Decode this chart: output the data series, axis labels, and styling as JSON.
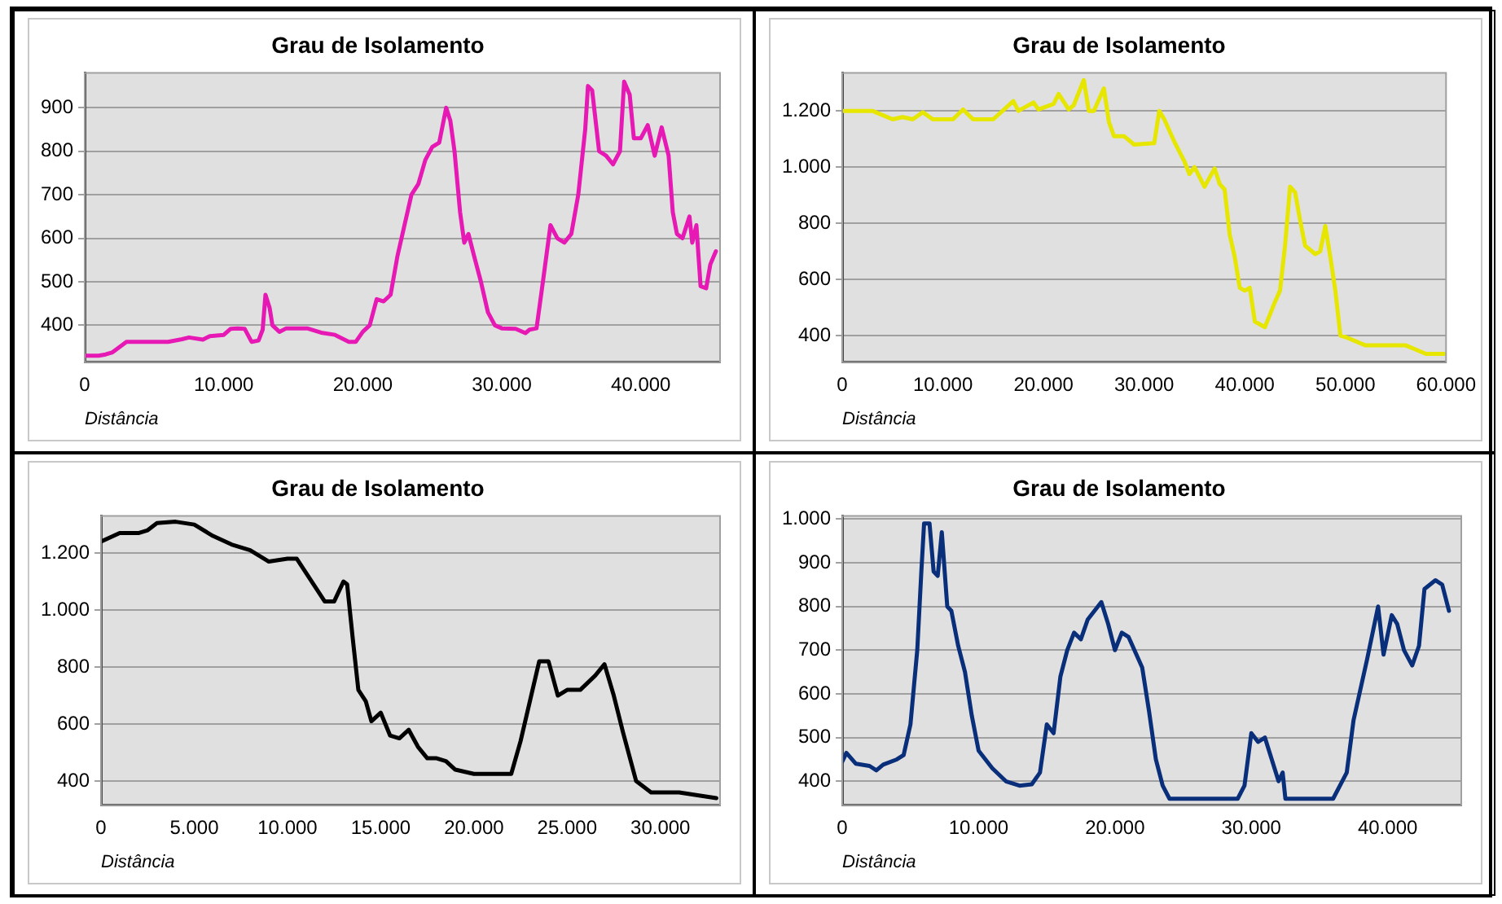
{
  "chart_data": [
    {
      "type": "line",
      "title": "Grau de Isolamento",
      "xlabel": "Distância",
      "grid": "y",
      "marker": "none",
      "line_style": "solid",
      "xlim": [
        0,
        45700
      ],
      "ylim": [
        315,
        980
      ],
      "xticks": [
        {
          "value": 0,
          "label": "0"
        },
        {
          "value": 10000,
          "label": "10.000"
        },
        {
          "value": 20000,
          "label": "20.000"
        },
        {
          "value": 30000,
          "label": "30.000"
        },
        {
          "value": 40000,
          "label": "40.000"
        }
      ],
      "yticks": [
        400,
        500,
        600,
        700,
        800,
        900
      ],
      "series": [
        {
          "color": "#e619b4",
          "x": [
            0,
            1000,
            1500,
            2000,
            3000,
            6000,
            7000,
            7500,
            8500,
            9000,
            10000,
            10500,
            11000,
            11500,
            12000,
            12500,
            12800,
            13000,
            13300,
            13500,
            14000,
            14500,
            16000,
            17000,
            18000,
            19000,
            19500,
            20000,
            20500,
            21000,
            21500,
            22000,
            22500,
            23000,
            23500,
            24000,
            24500,
            25000,
            25500,
            26000,
            26300,
            26600,
            27000,
            27300,
            27600,
            28000,
            28500,
            29000,
            29500,
            30000,
            31000,
            31700,
            32000,
            32500,
            33000,
            33500,
            34000,
            34500,
            35000,
            35500,
            36000,
            36200,
            36500,
            37000,
            37500,
            38000,
            38500,
            38800,
            39200,
            39500,
            40000,
            40500,
            41000,
            41500,
            42000,
            42300,
            42600,
            43000,
            43500,
            43700,
            44000,
            44300,
            44700,
            45000,
            45400
          ],
          "values": [
            330,
            330,
            333,
            338,
            362,
            362,
            368,
            372,
            367,
            375,
            378,
            392,
            393,
            392,
            362,
            365,
            390,
            470,
            440,
            400,
            385,
            393,
            393,
            383,
            378,
            362,
            362,
            385,
            400,
            460,
            455,
            470,
            560,
            630,
            700,
            725,
            780,
            810,
            820,
            900,
            870,
            800,
            660,
            590,
            610,
            560,
            500,
            430,
            400,
            393,
            392,
            382,
            390,
            393,
            510,
            630,
            600,
            590,
            610,
            700,
            850,
            950,
            940,
            800,
            790,
            770,
            800,
            960,
            930,
            830,
            830,
            860,
            790,
            855,
            790,
            660,
            610,
            600,
            650,
            590,
            630,
            490,
            485,
            540,
            570
          ]
        }
      ]
    },
    {
      "type": "line",
      "title": "Grau de Isolamento",
      "xlabel": "Distância",
      "grid": "y",
      "marker": "none",
      "line_style": "solid",
      "xlim": [
        0,
        60000
      ],
      "ylim": [
        305,
        1335
      ],
      "xticks": [
        {
          "value": 0,
          "label": "0"
        },
        {
          "value": 10000,
          "label": "10.000"
        },
        {
          "value": 20000,
          "label": "20.000"
        },
        {
          "value": 30000,
          "label": "30.000"
        },
        {
          "value": 40000,
          "label": "40.000"
        },
        {
          "value": 50000,
          "label": "50.000"
        },
        {
          "value": 60000,
          "label": "60.000"
        }
      ],
      "yticks": [
        {
          "value": 400,
          "label": "400"
        },
        {
          "value": 600,
          "label": "600"
        },
        {
          "value": 800,
          "label": "800"
        },
        {
          "value": 1000,
          "label": "1.000"
        },
        {
          "value": 1200,
          "label": "1.200"
        }
      ],
      "series": [
        {
          "color": "#e6e600",
          "x": [
            0,
            3000,
            5000,
            6000,
            7000,
            8000,
            9000,
            11000,
            12000,
            13000,
            15000,
            17000,
            17500,
            19000,
            19500,
            21000,
            21500,
            22500,
            23000,
            24000,
            24500,
            25000,
            26000,
            26500,
            27000,
            28000,
            29000,
            31000,
            31500,
            32000,
            33000,
            34000,
            34500,
            35000,
            36000,
            37000,
            37500,
            38000,
            38500,
            39000,
            39500,
            40000,
            40500,
            41000,
            42000,
            43000,
            43500,
            44000,
            44500,
            45000,
            45500,
            46000,
            47000,
            47500,
            48000,
            48500,
            49000,
            49500,
            50000,
            52000,
            56000,
            57000,
            58000,
            59800
          ],
          "values": [
            1200,
            1200,
            1170,
            1178,
            1170,
            1195,
            1170,
            1170,
            1205,
            1170,
            1170,
            1235,
            1200,
            1230,
            1205,
            1225,
            1260,
            1205,
            1220,
            1310,
            1200,
            1200,
            1280,
            1160,
            1110,
            1110,
            1080,
            1085,
            1200,
            1170,
            1090,
            1020,
            975,
            1000,
            930,
            995,
            940,
            920,
            760,
            680,
            570,
            560,
            570,
            450,
            430,
            520,
            560,
            720,
            930,
            910,
            810,
            720,
            690,
            700,
            790,
            680,
            560,
            400,
            395,
            365,
            365,
            350,
            335,
            335
          ]
        }
      ]
    },
    {
      "type": "line",
      "title": "Grau de Isolamento",
      "xlabel": "Distância",
      "grid": "y",
      "marker": "none",
      "line_style": "solid",
      "xlim": [
        0,
        33200
      ],
      "ylim": [
        315,
        1330
      ],
      "xticks": [
        {
          "value": 0,
          "label": "0"
        },
        {
          "value": 5000,
          "label": "5.000"
        },
        {
          "value": 10000,
          "label": "10.000"
        },
        {
          "value": 15000,
          "label": "15.000"
        },
        {
          "value": 20000,
          "label": "20.000"
        },
        {
          "value": 25000,
          "label": "25.000"
        },
        {
          "value": 30000,
          "label": "30.000"
        }
      ],
      "yticks": [
        {
          "value": 400,
          "label": "400"
        },
        {
          "value": 600,
          "label": "600"
        },
        {
          "value": 800,
          "label": "800"
        },
        {
          "value": 1000,
          "label": "1.000"
        },
        {
          "value": 1200,
          "label": "1.200"
        }
      ],
      "series": [
        {
          "color": "#000000",
          "x": [
            0,
            1000,
            2000,
            2500,
            3000,
            4000,
            5000,
            6000,
            7000,
            8000,
            9000,
            10000,
            10500,
            11000,
            11500,
            12000,
            12500,
            13000,
            13200,
            13500,
            13800,
            14200,
            14500,
            15000,
            15500,
            16000,
            16500,
            17000,
            17500,
            18000,
            18500,
            19000,
            20000,
            22000,
            22500,
            23000,
            23500,
            24000,
            24500,
            25000,
            25700,
            26500,
            27000,
            27500,
            28000,
            28700,
            29500,
            31000,
            33000
          ],
          "values": [
            1240,
            1270,
            1270,
            1280,
            1305,
            1310,
            1300,
            1260,
            1230,
            1210,
            1170,
            1180,
            1180,
            1130,
            1080,
            1030,
            1030,
            1100,
            1090,
            900,
            720,
            680,
            610,
            640,
            560,
            550,
            580,
            520,
            480,
            480,
            470,
            440,
            425,
            425,
            540,
            680,
            820,
            820,
            700,
            720,
            720,
            770,
            810,
            700,
            570,
            400,
            360,
            360,
            340
          ]
        }
      ]
    },
    {
      "type": "line",
      "title": "Grau de Isolamento",
      "xlabel": "Distância",
      "grid": "y",
      "marker": "none",
      "line_style": "solid",
      "xlim": [
        0,
        45400
      ],
      "ylim": [
        345,
        1007
      ],
      "xticks": [
        {
          "value": 0,
          "label": "0"
        },
        {
          "value": 10000,
          "label": "10.000"
        },
        {
          "value": 20000,
          "label": "20.000"
        },
        {
          "value": 30000,
          "label": "30.000"
        },
        {
          "value": 40000,
          "label": "40.000"
        }
      ],
      "yticks": [
        400,
        500,
        600,
        700,
        800,
        900,
        {
          "value": 1000,
          "label": "1.000"
        }
      ],
      "series": [
        {
          "color": "#0a2f7a",
          "x": [
            0,
            300,
            1000,
            2000,
            2500,
            3000,
            4000,
            4500,
            5000,
            5500,
            5800,
            6000,
            6400,
            6700,
            7000,
            7300,
            7700,
            8000,
            8500,
            9000,
            9500,
            10000,
            11000,
            12000,
            13000,
            13900,
            14500,
            15000,
            15500,
            16000,
            16500,
            17000,
            17500,
            18000,
            19000,
            19500,
            20000,
            20500,
            21000,
            22000,
            22500,
            23000,
            23500,
            24000,
            29000,
            29500,
            30000,
            30500,
            31000,
            31500,
            32000,
            32300,
            32500,
            36000,
            37000,
            37500,
            38500,
            39300,
            39700,
            40300,
            40700,
            41200,
            41800,
            42300,
            42700,
            43500,
            44000,
            44500
          ],
          "values": [
            445,
            465,
            440,
            435,
            425,
            438,
            450,
            460,
            530,
            700,
            880,
            990,
            990,
            880,
            870,
            970,
            800,
            790,
            710,
            650,
            550,
            470,
            430,
            400,
            390,
            393,
            420,
            530,
            510,
            640,
            700,
            740,
            725,
            770,
            810,
            760,
            700,
            740,
            730,
            660,
            560,
            450,
            390,
            360,
            360,
            390,
            510,
            490,
            500,
            450,
            400,
            420,
            360,
            360,
            420,
            540,
            680,
            800,
            690,
            780,
            760,
            700,
            665,
            710,
            840,
            860,
            850,
            790
          ]
        }
      ]
    }
  ]
}
